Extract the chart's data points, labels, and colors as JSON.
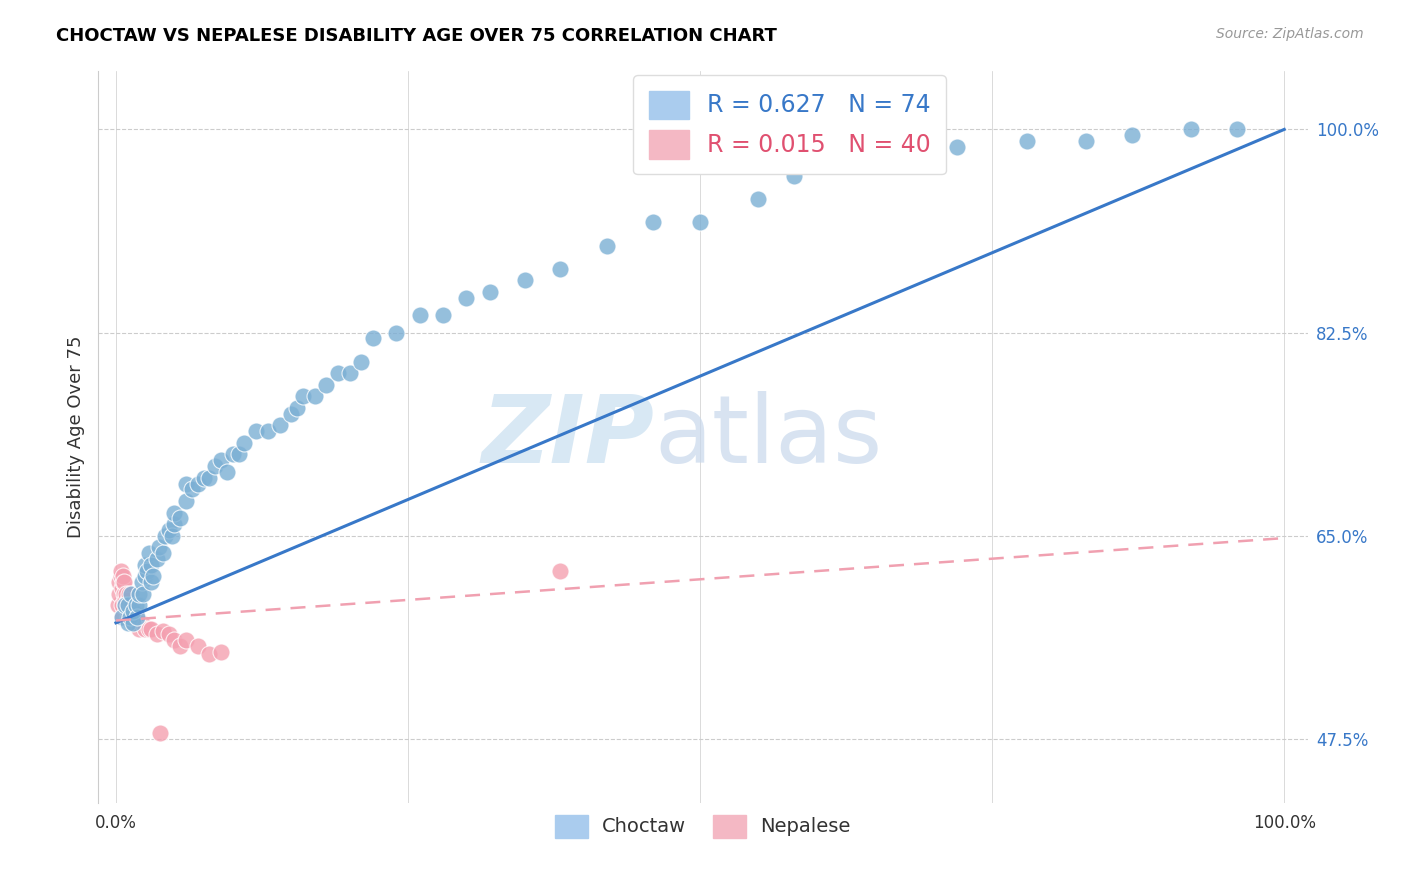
{
  "title": "CHOCTAW VS NEPALESE DISABILITY AGE OVER 75 CORRELATION CHART",
  "source": "Source: ZipAtlas.com",
  "ylabel": "Disability Age Over 75",
  "choctaw_R": 0.627,
  "choctaw_N": 74,
  "nepalese_R": 0.015,
  "nepalese_N": 40,
  "choctaw_color": "#7BAFD4",
  "nepalese_color": "#F4A0B0",
  "choctaw_line_color": "#3878C8",
  "nepalese_line_color": "#F0A0B0",
  "background_color": "#FFFFFF",
  "ytick_vals": [
    0.475,
    0.65,
    0.825,
    1.0
  ],
  "ytick_labels": [
    "47.5%",
    "65.0%",
    "82.5%",
    "100.0%"
  ],
  "xlim": [
    -0.015,
    1.02
  ],
  "ylim": [
    0.42,
    1.05
  ],
  "choctaw_line_x0": 0.0,
  "choctaw_line_y0": 0.575,
  "choctaw_line_x1": 1.0,
  "choctaw_line_y1": 1.0,
  "nepalese_line_x0": 0.0,
  "nepalese_line_y0": 0.577,
  "nepalese_line_x1": 1.0,
  "nepalese_line_y1": 0.648,
  "choctaw_x": [
    0.005,
    0.008,
    0.01,
    0.01,
    0.012,
    0.013,
    0.015,
    0.015,
    0.017,
    0.018,
    0.02,
    0.02,
    0.022,
    0.023,
    0.025,
    0.025,
    0.027,
    0.028,
    0.03,
    0.03,
    0.032,
    0.035,
    0.037,
    0.04,
    0.042,
    0.045,
    0.048,
    0.05,
    0.05,
    0.055,
    0.06,
    0.06,
    0.065,
    0.07,
    0.075,
    0.08,
    0.085,
    0.09,
    0.095,
    0.1,
    0.105,
    0.11,
    0.12,
    0.13,
    0.14,
    0.15,
    0.155,
    0.16,
    0.17,
    0.18,
    0.19,
    0.2,
    0.21,
    0.22,
    0.24,
    0.26,
    0.28,
    0.3,
    0.32,
    0.35,
    0.38,
    0.42,
    0.46,
    0.5,
    0.55,
    0.58,
    0.62,
    0.68,
    0.72,
    0.78,
    0.83,
    0.87,
    0.92,
    0.96
  ],
  "choctaw_y": [
    0.58,
    0.59,
    0.575,
    0.59,
    0.58,
    0.6,
    0.575,
    0.585,
    0.59,
    0.58,
    0.59,
    0.6,
    0.61,
    0.6,
    0.615,
    0.625,
    0.62,
    0.635,
    0.61,
    0.625,
    0.615,
    0.63,
    0.64,
    0.635,
    0.65,
    0.655,
    0.65,
    0.66,
    0.67,
    0.665,
    0.68,
    0.695,
    0.69,
    0.695,
    0.7,
    0.7,
    0.71,
    0.715,
    0.705,
    0.72,
    0.72,
    0.73,
    0.74,
    0.74,
    0.745,
    0.755,
    0.76,
    0.77,
    0.77,
    0.78,
    0.79,
    0.79,
    0.8,
    0.82,
    0.825,
    0.84,
    0.84,
    0.855,
    0.86,
    0.87,
    0.88,
    0.9,
    0.92,
    0.92,
    0.94,
    0.96,
    0.97,
    0.98,
    0.985,
    0.99,
    0.99,
    0.995,
    1.0,
    1.0
  ],
  "nepalese_x": [
    0.002,
    0.003,
    0.003,
    0.004,
    0.004,
    0.005,
    0.005,
    0.005,
    0.006,
    0.006,
    0.007,
    0.007,
    0.008,
    0.008,
    0.009,
    0.01,
    0.01,
    0.011,
    0.012,
    0.013,
    0.014,
    0.015,
    0.016,
    0.018,
    0.02,
    0.022,
    0.025,
    0.028,
    0.03,
    0.035,
    0.038,
    0.04,
    0.045,
    0.05,
    0.055,
    0.06,
    0.07,
    0.08,
    0.09,
    0.38
  ],
  "nepalese_y": [
    0.59,
    0.6,
    0.61,
    0.615,
    0.62,
    0.58,
    0.59,
    0.605,
    0.61,
    0.615,
    0.6,
    0.61,
    0.59,
    0.595,
    0.6,
    0.58,
    0.595,
    0.6,
    0.58,
    0.59,
    0.59,
    0.575,
    0.58,
    0.58,
    0.57,
    0.575,
    0.57,
    0.57,
    0.57,
    0.565,
    0.48,
    0.568,
    0.565,
    0.56,
    0.555,
    0.56,
    0.555,
    0.548,
    0.55,
    0.62
  ]
}
